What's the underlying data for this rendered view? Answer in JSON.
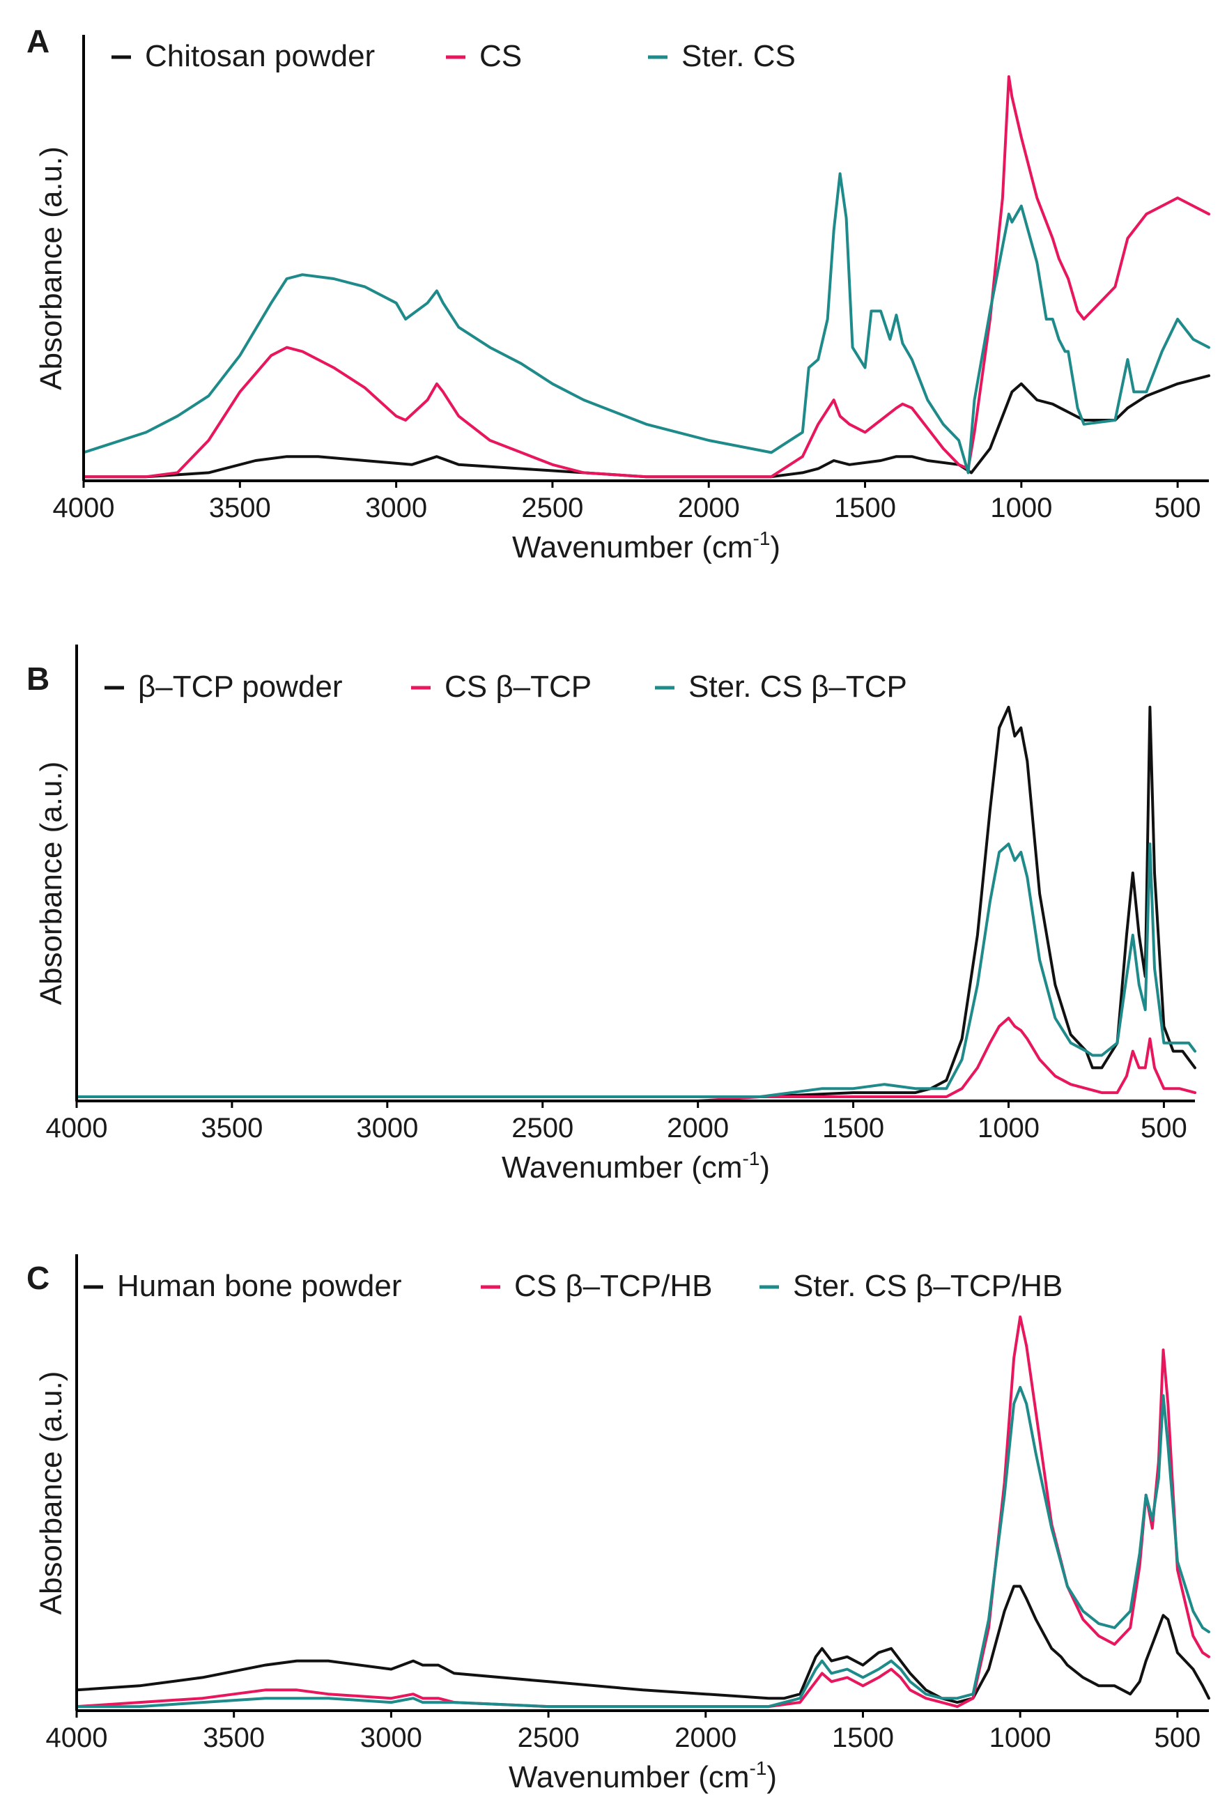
{
  "colors": {
    "black": "#111111",
    "pink": "#e8175d",
    "teal": "#1f8a8a"
  },
  "chart_data": [
    {
      "type": "line",
      "panel": "A",
      "xlabel": "Wavenumber (cm",
      "xlabel_sup": "-1",
      "xlabel_end": ")",
      "ylabel": "Absorbance (a.u.)",
      "xlim": [
        4000,
        400
      ],
      "ylim": [
        0,
        100
      ],
      "xticks": [
        "4000",
        "3500",
        "3000",
        "2500",
        "2000",
        "1500",
        "1000",
        "500"
      ],
      "series": [
        {
          "name": "Chitosan powder",
          "color": "#111111",
          "x": [
            4000,
            3800,
            3600,
            3450,
            3350,
            3250,
            3100,
            2950,
            2870,
            2800,
            2600,
            2400,
            2200,
            2000,
            1800,
            1700,
            1650,
            1600,
            1550,
            1450,
            1400,
            1350,
            1300,
            1200,
            1160,
            1100,
            1050,
            1030,
            1000,
            950,
            900,
            850,
            800,
            700,
            660,
            600,
            500,
            400
          ],
          "y": [
            1,
            1,
            2,
            5,
            6,
            6,
            5,
            4,
            6,
            4,
            3,
            2,
            1,
            1,
            1,
            2,
            3,
            5,
            4,
            5,
            6,
            6,
            5,
            4,
            2,
            8,
            18,
            22,
            24,
            20,
            19,
            17,
            15,
            15,
            18,
            21,
            24,
            26
          ]
        },
        {
          "name": "CS",
          "color": "#e8175d",
          "x": [
            4000,
            3800,
            3700,
            3600,
            3500,
            3400,
            3350,
            3300,
            3200,
            3100,
            3000,
            2970,
            2900,
            2870,
            2850,
            2800,
            2700,
            2600,
            2500,
            2400,
            2200,
            2000,
            1800,
            1700,
            1650,
            1600,
            1580,
            1550,
            1500,
            1450,
            1400,
            1380,
            1350,
            1300,
            1250,
            1200,
            1170,
            1150,
            1100,
            1060,
            1040,
            1030,
            1000,
            950,
            900,
            880,
            850,
            820,
            800,
            700,
            660,
            600,
            550,
            500,
            450,
            400
          ],
          "y": [
            1,
            1,
            2,
            10,
            22,
            31,
            33,
            32,
            28,
            23,
            16,
            15,
            20,
            24,
            22,
            16,
            10,
            7,
            4,
            2,
            1,
            1,
            1,
            6,
            14,
            20,
            16,
            14,
            12,
            15,
            18,
            19,
            18,
            13,
            8,
            4,
            3,
            12,
            40,
            70,
            100,
            95,
            85,
            70,
            60,
            55,
            50,
            42,
            40,
            48,
            60,
            66,
            68,
            70,
            68,
            66
          ]
        },
        {
          "name": "Ster. CS",
          "color": "#1f8a8a",
          "x": [
            4000,
            3800,
            3700,
            3600,
            3500,
            3400,
            3350,
            3300,
            3200,
            3100,
            3000,
            2970,
            2900,
            2870,
            2850,
            2800,
            2700,
            2600,
            2500,
            2400,
            2200,
            2000,
            1800,
            1700,
            1680,
            1650,
            1620,
            1600,
            1580,
            1560,
            1540,
            1500,
            1480,
            1450,
            1420,
            1400,
            1380,
            1350,
            1300,
            1250,
            1200,
            1170,
            1150,
            1100,
            1060,
            1040,
            1030,
            1000,
            950,
            920,
            900,
            880,
            860,
            850,
            820,
            800,
            700,
            660,
            640,
            600,
            550,
            500,
            450,
            400
          ],
          "y": [
            7,
            12,
            16,
            21,
            31,
            44,
            50,
            51,
            50,
            48,
            44,
            40,
            44,
            47,
            44,
            38,
            33,
            29,
            24,
            20,
            14,
            10,
            7,
            12,
            28,
            30,
            40,
            62,
            76,
            65,
            33,
            28,
            42,
            42,
            35,
            41,
            34,
            30,
            20,
            14,
            10,
            2,
            20,
            42,
            58,
            66,
            64,
            68,
            54,
            40,
            40,
            35,
            32,
            32,
            18,
            14,
            15,
            30,
            22,
            22,
            32,
            40,
            35,
            33
          ]
        }
      ],
      "legend": [
        "Chitosan powder",
        "CS",
        "Ster. CS"
      ]
    },
    {
      "type": "line",
      "panel": "B",
      "xlabel": "Wavenumber (cm",
      "xlabel_sup": "-1",
      "xlabel_end": ")",
      "ylabel": "Absorbance (a.u.)",
      "xlim": [
        4000,
        400
      ],
      "ylim": [
        0,
        100
      ],
      "xticks": [
        "4000",
        "3500",
        "3000",
        "2500",
        "2000",
        "1500",
        "1000",
        "500"
      ],
      "series": [
        {
          "name": "β–TCP powder",
          "color": "#111111",
          "x": [
            4000,
            3700,
            3500,
            3000,
            2500,
            2000,
            1800,
            1500,
            1300,
            1250,
            1200,
            1150,
            1100,
            1060,
            1030,
            1000,
            980,
            960,
            940,
            900,
            850,
            800,
            750,
            730,
            700,
            650,
            620,
            600,
            580,
            560,
            545,
            530,
            500,
            470,
            440,
            420,
            400
          ],
          "y": [
            1,
            1,
            1,
            1,
            1,
            1,
            1,
            2,
            2,
            3,
            5,
            15,
            40,
            70,
            90,
            95,
            88,
            90,
            82,
            50,
            28,
            16,
            12,
            8,
            8,
            14,
            40,
            55,
            40,
            30,
            95,
            55,
            18,
            12,
            12,
            10,
            8
          ]
        },
        {
          "name": "CS β–TCP",
          "color": "#e8175d",
          "x": [
            4000,
            3500,
            3000,
            2500,
            2000,
            1800,
            1500,
            1300,
            1200,
            1150,
            1100,
            1060,
            1030,
            1000,
            980,
            960,
            940,
            900,
            850,
            800,
            700,
            650,
            620,
            600,
            580,
            560,
            545,
            530,
            500,
            450,
            400
          ],
          "y": [
            0,
            0,
            0,
            0,
            0,
            1,
            1,
            1,
            1,
            3,
            8,
            14,
            18,
            20,
            18,
            17,
            15,
            10,
            6,
            4,
            2,
            2,
            6,
            12,
            8,
            8,
            15,
            8,
            3,
            3,
            2
          ]
        },
        {
          "name": "Ster. CS β–TCP",
          "color": "#1f8a8a",
          "x": [
            4000,
            3500,
            3000,
            2500,
            2000,
            1800,
            1700,
            1600,
            1500,
            1400,
            1300,
            1200,
            1150,
            1100,
            1060,
            1030,
            1000,
            980,
            960,
            940,
            900,
            850,
            800,
            750,
            730,
            700,
            650,
            620,
            600,
            580,
            560,
            545,
            530,
            500,
            470,
            440,
            420,
            400
          ],
          "y": [
            1,
            1,
            1,
            1,
            1,
            1,
            2,
            3,
            3,
            4,
            3,
            3,
            10,
            28,
            48,
            60,
            62,
            58,
            60,
            54,
            34,
            20,
            14,
            12,
            11,
            11,
            14,
            30,
            40,
            28,
            22,
            62,
            32,
            14,
            14,
            14,
            14,
            12
          ]
        }
      ],
      "legend": [
        "β–TCP powder",
        "CS β–TCP",
        "Ster. CS β–TCP"
      ]
    },
    {
      "type": "line",
      "panel": "C",
      "xlabel": "Wavenumber (cm",
      "xlabel_sup": "-1",
      "xlabel_end": ")",
      "ylabel": "Absorbance (a.u.)",
      "xlim": [
        4000,
        400
      ],
      "ylim": [
        0,
        100
      ],
      "xticks": [
        "4000",
        "3500",
        "3000",
        "2500",
        "2000",
        "1500",
        "1000",
        "500"
      ],
      "series": [
        {
          "name": "Human bone powder",
          "color": "#111111",
          "x": [
            4000,
            3800,
            3600,
            3400,
            3300,
            3200,
            3000,
            2930,
            2900,
            2850,
            2800,
            2500,
            2200,
            2000,
            1800,
            1750,
            1700,
            1650,
            1630,
            1600,
            1550,
            1500,
            1450,
            1410,
            1380,
            1350,
            1300,
            1250,
            1200,
            1150,
            1100,
            1050,
            1020,
            1000,
            980,
            950,
            900,
            870,
            850,
            800,
            750,
            700,
            650,
            620,
            600,
            580,
            560,
            545,
            530,
            500,
            450,
            420,
            400
          ],
          "y": [
            5,
            6,
            8,
            11,
            12,
            12,
            10,
            12,
            11,
            11,
            9,
            7,
            5,
            4,
            3,
            3,
            4,
            13,
            15,
            12,
            13,
            11,
            14,
            15,
            12,
            9,
            5,
            3,
            2,
            3,
            10,
            24,
            30,
            30,
            27,
            22,
            15,
            13,
            11,
            8,
            6,
            6,
            4,
            7,
            12,
            16,
            20,
            23,
            22,
            14,
            10,
            6,
            3
          ]
        },
        {
          "name": "CS β–TCP/HB",
          "color": "#e8175d",
          "x": [
            4000,
            3800,
            3600,
            3400,
            3300,
            3200,
            3000,
            2930,
            2900,
            2850,
            2800,
            2500,
            2200,
            2000,
            1800,
            1700,
            1650,
            1630,
            1600,
            1550,
            1500,
            1450,
            1410,
            1380,
            1350,
            1300,
            1250,
            1200,
            1150,
            1100,
            1050,
            1020,
            1000,
            980,
            950,
            900,
            850,
            800,
            750,
            700,
            650,
            620,
            600,
            580,
            560,
            545,
            530,
            500,
            450,
            420,
            400
          ],
          "y": [
            1,
            2,
            3,
            5,
            5,
            4,
            3,
            4,
            3,
            3,
            2,
            1,
            1,
            1,
            1,
            2,
            7,
            9,
            7,
            8,
            6,
            8,
            10,
            8,
            5,
            3,
            2,
            1,
            3,
            20,
            55,
            85,
            95,
            88,
            72,
            45,
            30,
            22,
            18,
            16,
            20,
            35,
            52,
            44,
            60,
            87,
            74,
            34,
            18,
            14,
            13
          ]
        },
        {
          "name": "Ster. CS β–TCP/HB",
          "color": "#1f8a8a",
          "x": [
            4000,
            3800,
            3600,
            3400,
            3300,
            3200,
            3000,
            2930,
            2900,
            2850,
            2800,
            2500,
            2200,
            2000,
            1800,
            1700,
            1650,
            1630,
            1600,
            1550,
            1500,
            1450,
            1410,
            1380,
            1350,
            1300,
            1250,
            1200,
            1150,
            1100,
            1050,
            1020,
            1000,
            980,
            950,
            900,
            850,
            800,
            750,
            700,
            650,
            620,
            600,
            580,
            560,
            545,
            530,
            500,
            450,
            420,
            400
          ],
          "y": [
            1,
            1,
            2,
            3,
            3,
            3,
            2,
            3,
            2,
            2,
            2,
            1,
            1,
            1,
            1,
            3,
            10,
            12,
            9,
            10,
            8,
            10,
            12,
            10,
            7,
            4,
            3,
            3,
            4,
            22,
            52,
            74,
            78,
            74,
            62,
            44,
            30,
            24,
            21,
            20,
            24,
            38,
            52,
            46,
            56,
            76,
            64,
            36,
            24,
            20,
            19
          ]
        }
      ],
      "legend": [
        "Human bone powder",
        "CS β–TCP/HB",
        "Ster. CS β–TCP/HB"
      ]
    }
  ]
}
